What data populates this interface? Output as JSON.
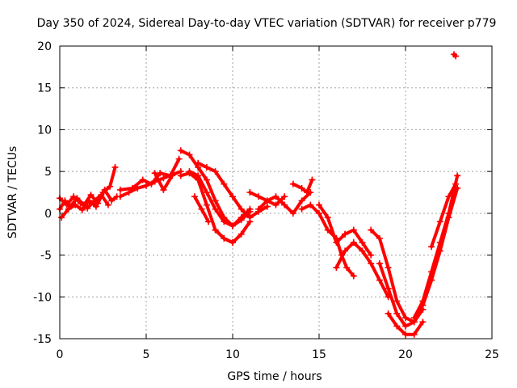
{
  "chart_data": {
    "type": "scatter",
    "title": "Day 350 of 2024, Sidereal Day-to-day VTEC variation (SDTVAR) for receiver p779",
    "xlabel": "GPS time / hours",
    "ylabel": "SDTVAR / TECUs",
    "xlim": [
      0,
      25
    ],
    "ylim": [
      -15,
      20
    ],
    "xticks": [
      0,
      5,
      10,
      15,
      20,
      25
    ],
    "yticks": [
      -15,
      -10,
      -5,
      0,
      5,
      10,
      15,
      20
    ],
    "grid": true,
    "marker": "+",
    "color": "#ff0000",
    "traces": [
      {
        "x": [
          0,
          0.3,
          0.6,
          1.0,
          1.4,
          1.8,
          2.2,
          2.6,
          3.0,
          3.3
        ],
        "y": [
          0.5,
          1.5,
          0.8,
          1.8,
          1.0,
          2.2,
          1.2,
          2.8,
          1.5,
          2.0
        ]
      },
      {
        "x": [
          0.1,
          0.5,
          0.9,
          1.3,
          1.7,
          2.1,
          2.5,
          2.9,
          3.2
        ],
        "y": [
          -0.5,
          0.5,
          1.0,
          0.4,
          1.5,
          0.8,
          2.5,
          3.2,
          5.5
        ]
      },
      {
        "x": [
          0,
          0.4,
          0.8,
          1.2,
          1.6,
          2.0,
          2.4,
          2.8
        ],
        "y": [
          1.8,
          1.0,
          2.0,
          1.2,
          0.6,
          1.5,
          2.2,
          1.0
        ]
      },
      {
        "x": [
          3.5,
          4.0,
          4.5,
          5.0,
          5.5,
          6.0,
          6.5,
          7.0
        ],
        "y": [
          2.0,
          2.5,
          3.0,
          3.3,
          3.8,
          4.2,
          4.6,
          5.0
        ]
      },
      {
        "x": [
          3.5,
          4.2,
          4.8,
          5.3,
          5.8,
          6.4,
          6.9
        ],
        "y": [
          2.8,
          3.0,
          4.0,
          3.5,
          4.8,
          4.5,
          6.5
        ]
      },
      {
        "x": [
          5.5,
          6.0,
          6.5
        ],
        "y": [
          4.8,
          2.8,
          4.5
        ]
      },
      {
        "x": [
          7.0,
          7.5,
          8.0,
          8.5,
          9.0,
          9.5,
          10.0,
          10.5,
          11.0
        ],
        "y": [
          7.5,
          7.0,
          5.5,
          4.0,
          1.5,
          -0.5,
          -1.5,
          -0.8,
          0.2
        ]
      },
      {
        "x": [
          7.5,
          8.0,
          8.5,
          9.0,
          9.5,
          10.0,
          10.5,
          11.0
        ],
        "y": [
          5.0,
          4.5,
          2.5,
          0.5,
          -1.0,
          -1.5,
          -0.5,
          0.5
        ]
      },
      {
        "x": [
          7.0,
          7.5,
          8.0,
          8.5,
          9.0,
          9.5,
          10.0,
          10.5,
          11.0
        ],
        "y": [
          4.5,
          4.8,
          4.0,
          1.0,
          -2.0,
          -3.0,
          -3.5,
          -2.5,
          -1.0
        ]
      },
      {
        "x": [
          7.8,
          8.2,
          8.6
        ],
        "y": [
          2.0,
          0.5,
          -1.0
        ]
      },
      {
        "x": [
          8.0,
          8.5,
          9.0,
          9.5,
          10.0,
          10.5,
          11.0,
          11.5,
          12.0
        ],
        "y": [
          6.0,
          5.5,
          5.0,
          3.5,
          2.0,
          0.5,
          -0.5,
          0.2,
          0.8
        ]
      },
      {
        "x": [
          9.0,
          9.5,
          10.0
        ],
        "y": [
          -2.0,
          -3.0,
          -3.5
        ]
      },
      {
        "x": [
          11.0,
          11.5,
          12.0,
          12.5,
          13.0
        ],
        "y": [
          2.5,
          2.0,
          1.5,
          1.0,
          2.0
        ]
      },
      {
        "x": [
          11.5,
          12.0,
          12.5,
          13.0,
          13.5,
          14.0,
          14.5
        ],
        "y": [
          0.5,
          1.5,
          2.0,
          1.0,
          0.0,
          1.5,
          2.5
        ]
      },
      {
        "x": [
          13.5,
          14.0,
          14.3,
          14.6
        ],
        "y": [
          3.5,
          3.0,
          2.5,
          4.0
        ]
      },
      {
        "x": [
          14.0,
          14.5,
          15.0,
          15.5,
          16.0
        ],
        "y": [
          0.5,
          1.0,
          0.0,
          -2.0,
          -3.0
        ]
      },
      {
        "x": [
          15.0,
          15.5,
          16.0,
          16.5
        ],
        "y": [
          1.0,
          -0.5,
          -3.5,
          -2.5
        ]
      },
      {
        "x": [
          16.0,
          16.3,
          16.6,
          17.0
        ],
        "y": [
          -3.0,
          -5.0,
          -6.5,
          -7.5
        ]
      },
      {
        "x": [
          16.5,
          17.0,
          17.5,
          18.0
        ],
        "y": [
          -2.5,
          -2.0,
          -3.5,
          -5.0
        ]
      },
      {
        "x": [
          16.0,
          16.5,
          17.0,
          17.5,
          18.0,
          18.5,
          19.0
        ],
        "y": [
          -6.5,
          -4.5,
          -3.5,
          -4.5,
          -6.0,
          -8.0,
          -10.0
        ]
      },
      {
        "x": [
          18.0,
          18.5,
          19.0,
          19.5,
          20.0,
          20.5,
          21.0
        ],
        "y": [
          -2.0,
          -3.0,
          -6.5,
          -10.5,
          -12.5,
          -13.0,
          -11.5
        ]
      },
      {
        "x": [
          18.5,
          19.0,
          19.5,
          20.0,
          20.5,
          21.0,
          21.5
        ],
        "y": [
          -6.0,
          -9.0,
          -12.0,
          -13.5,
          -13.0,
          -11.0,
          -8.0
        ]
      },
      {
        "x": [
          19.0,
          19.5,
          20.0,
          20.5,
          21.0
        ],
        "y": [
          -12.0,
          -13.5,
          -14.5,
          -14.5,
          -13.0
        ]
      },
      {
        "x": [
          20.5,
          21.0,
          21.5,
          22.0,
          22.5,
          23.0
        ],
        "y": [
          -12.5,
          -10.5,
          -7.0,
          -3.5,
          0.0,
          4.5
        ]
      },
      {
        "x": [
          21.0,
          21.5,
          22.0,
          22.5,
          23.0
        ],
        "y": [
          -11.0,
          -8.0,
          -4.5,
          -0.5,
          3.0
        ]
      },
      {
        "x": [
          21.5,
          22.0,
          22.5,
          22.9
        ],
        "y": [
          -4.0,
          -1.0,
          2.0,
          3.5
        ]
      },
      {
        "x": [
          22.8,
          22.9
        ],
        "y": [
          19.0,
          18.8
        ]
      }
    ]
  }
}
